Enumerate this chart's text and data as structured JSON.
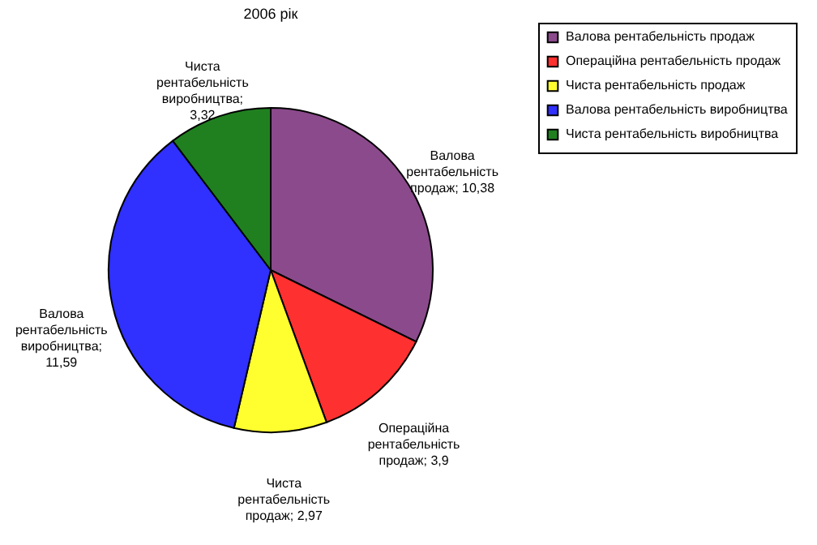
{
  "chart_data": {
    "type": "pie",
    "title": "2006 рік",
    "categories": [
      "Валова рентабельність продаж",
      "Операційна рентабельність продаж",
      "Чиста рентабельність продаж",
      "Валова рентабельність виробництва",
      "Чиста рентабельність виробництва"
    ],
    "values": [
      10.38,
      3.9,
      2.97,
      11.59,
      3.32
    ],
    "value_labels": [
      "10,38",
      "3,9",
      "2,97",
      "11,59",
      "3,32"
    ],
    "annotations": [
      "Валова рентабельність продаж;",
      "Операційна рентабельність продаж;",
      "Чиста рентабельність продаж;",
      "Валова рентабельність виробництва;",
      "Чиста рентабельність виробництва;"
    ],
    "colors": [
      "#8b4a8b",
      "#ff3030",
      "#ffff30",
      "#3030ff",
      "#208020"
    ],
    "legend": "right"
  }
}
